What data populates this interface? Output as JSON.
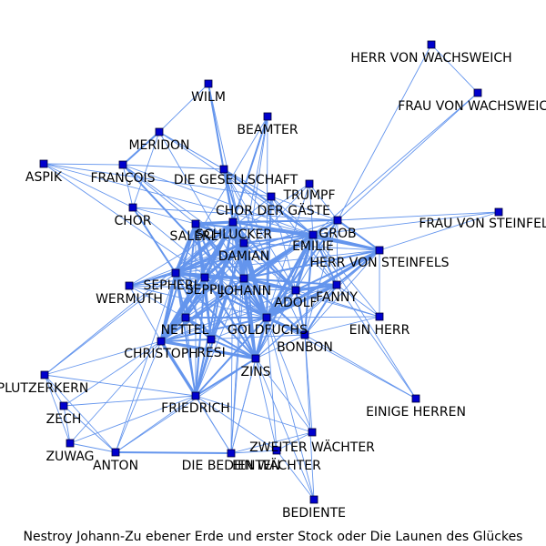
{
  "caption": "Nestroy Johann-Zu ebener Erde und erster Stock oder Die Launen des Glückes",
  "colors": {
    "edge": "#6495ED",
    "node": "#0000CD",
    "text": "#000000",
    "background": "#ffffff"
  },
  "nodes": [
    {
      "id": "herr_von_wachsweich",
      "label": "HERR VON WACHSWEICH"
    },
    {
      "id": "frau_von_wachsweich",
      "label": "FRAU VON WACHSWEICH"
    },
    {
      "id": "wilm",
      "label": "WILM"
    },
    {
      "id": "beamter",
      "label": "BEAMTER"
    },
    {
      "id": "meridon",
      "label": "MERIDON"
    },
    {
      "id": "aspik",
      "label": "ASPIK"
    },
    {
      "id": "francois",
      "label": "FRANÇOIS"
    },
    {
      "id": "die_gesellschaft",
      "label": "DIE GESELLSCHAFT"
    },
    {
      "id": "trumpf",
      "label": "TRUMPF"
    },
    {
      "id": "chor",
      "label": "CHOR"
    },
    {
      "id": "chor_der_gaeste",
      "label": "CHOR DER GÄSTE"
    },
    {
      "id": "frau_von_steinfels",
      "label": "FRAU VON STEINFELS"
    },
    {
      "id": "salerl",
      "label": "SALERL"
    },
    {
      "id": "schlucker",
      "label": "SCHLUCKER"
    },
    {
      "id": "grob",
      "label": "GROB"
    },
    {
      "id": "emilie",
      "label": "EMILIE"
    },
    {
      "id": "damian",
      "label": "DAMIAN"
    },
    {
      "id": "herr_von_steinfels",
      "label": "HERR VON STEINFELS"
    },
    {
      "id": "sepherl",
      "label": "SEPHERL"
    },
    {
      "id": "seppl",
      "label": "SEPPL"
    },
    {
      "id": "johann",
      "label": "JOHANN"
    },
    {
      "id": "wermuth",
      "label": "WERMUTH"
    },
    {
      "id": "adolf",
      "label": "ADOLF"
    },
    {
      "id": "fanny",
      "label": "FANNY"
    },
    {
      "id": "nettel",
      "label": "NETTEL"
    },
    {
      "id": "goldfuchs",
      "label": "GOLDFUCHS"
    },
    {
      "id": "ein_herr",
      "label": "EIN HERR"
    },
    {
      "id": "bonbon",
      "label": "BONBON"
    },
    {
      "id": "christoph",
      "label": "CHRISTOPH"
    },
    {
      "id": "resi",
      "label": "RESI"
    },
    {
      "id": "zins",
      "label": "ZINS"
    },
    {
      "id": "plutzerkern",
      "label": "PLUTZERKERN"
    },
    {
      "id": "friedrich",
      "label": "FRIEDRICH"
    },
    {
      "id": "einige_herren",
      "label": "EINIGE HERREN"
    },
    {
      "id": "zech",
      "label": "ZECH"
    },
    {
      "id": "zweiter_waechter",
      "label": "ZWEITER WÄCHTER"
    },
    {
      "id": "zuwag",
      "label": "ZUWAG"
    },
    {
      "id": "anton",
      "label": "ANTON"
    },
    {
      "id": "die_bedienten",
      "label": "DIE BEDIENTEN"
    },
    {
      "id": "ein_waechter",
      "label": "EIN WÄCHTER"
    },
    {
      "id": "bediente",
      "label": "BEDIENTE"
    }
  ],
  "edges": [
    [
      "herr_von_wachsweich",
      "frau_von_wachsweich",
      1
    ],
    [
      "herr_von_wachsweich",
      "grob",
      1
    ],
    [
      "frau_von_wachsweich",
      "grob",
      1
    ],
    [
      "frau_von_wachsweich",
      "emilie",
      1
    ],
    [
      "wilm",
      "schlucker",
      2
    ],
    [
      "wilm",
      "damian",
      1
    ],
    [
      "wilm",
      "meridon",
      1
    ],
    [
      "beamter",
      "schlucker",
      2
    ],
    [
      "beamter",
      "damian",
      1
    ],
    [
      "beamter",
      "goldfuchs",
      1
    ],
    [
      "beamter",
      "johann",
      1
    ],
    [
      "beamter",
      "sepherl",
      1
    ],
    [
      "meridon",
      "francois",
      2
    ],
    [
      "meridon",
      "chor",
      1
    ],
    [
      "meridon",
      "goldfuchs",
      1
    ],
    [
      "meridon",
      "die_gesellschaft",
      1
    ],
    [
      "meridon",
      "chor_der_gaeste",
      1
    ],
    [
      "meridon",
      "emilie",
      1
    ],
    [
      "aspik",
      "francois",
      1
    ],
    [
      "aspik",
      "chor",
      1
    ],
    [
      "aspik",
      "goldfuchs",
      1
    ],
    [
      "aspik",
      "emilie",
      1
    ],
    [
      "aspik",
      "chor_der_gaeste",
      1
    ],
    [
      "francois",
      "chor",
      1
    ],
    [
      "francois",
      "goldfuchs",
      2
    ],
    [
      "francois",
      "emilie",
      1
    ],
    [
      "francois",
      "die_gesellschaft",
      1
    ],
    [
      "francois",
      "salerl",
      1
    ],
    [
      "francois",
      "adolf",
      1
    ],
    [
      "die_gesellschaft",
      "goldfuchs",
      2
    ],
    [
      "die_gesellschaft",
      "emilie",
      2
    ],
    [
      "die_gesellschaft",
      "johann",
      2
    ],
    [
      "die_gesellschaft",
      "adolf",
      1
    ],
    [
      "die_gesellschaft",
      "chor_der_gaeste",
      1
    ],
    [
      "die_gesellschaft",
      "fanny",
      1
    ],
    [
      "die_gesellschaft",
      "bonbon",
      1
    ],
    [
      "trumpf",
      "emilie",
      1
    ],
    [
      "trumpf",
      "goldfuchs",
      1
    ],
    [
      "trumpf",
      "sepherl",
      1
    ],
    [
      "trumpf",
      "christoph",
      1
    ],
    [
      "trumpf",
      "grob",
      1
    ],
    [
      "chor",
      "salerl",
      1
    ],
    [
      "chor",
      "goldfuchs",
      1
    ],
    [
      "chor",
      "sepherl",
      2
    ],
    [
      "chor",
      "grob",
      1
    ],
    [
      "chor_der_gaeste",
      "goldfuchs",
      2
    ],
    [
      "chor_der_gaeste",
      "emilie",
      1
    ],
    [
      "chor_der_gaeste",
      "grob",
      1
    ],
    [
      "chor_der_gaeste",
      "adolf",
      1
    ],
    [
      "chor_der_gaeste",
      "fanny",
      1
    ],
    [
      "chor_der_gaeste",
      "sepherl",
      1
    ],
    [
      "frau_von_steinfels",
      "herr_von_steinfels",
      1
    ],
    [
      "frau_von_steinfels",
      "grob",
      1
    ],
    [
      "frau_von_steinfels",
      "emilie",
      1
    ],
    [
      "salerl",
      "schlucker",
      3
    ],
    [
      "salerl",
      "damian",
      3
    ],
    [
      "salerl",
      "sepherl",
      3
    ],
    [
      "salerl",
      "seppl",
      3
    ],
    [
      "salerl",
      "johann",
      2
    ],
    [
      "salerl",
      "christoph",
      2
    ],
    [
      "salerl",
      "nettel",
      2
    ],
    [
      "salerl",
      "goldfuchs",
      2
    ],
    [
      "salerl",
      "resi",
      2
    ],
    [
      "salerl",
      "zins",
      2
    ],
    [
      "salerl",
      "emilie",
      2
    ],
    [
      "salerl",
      "grob",
      1
    ],
    [
      "salerl",
      "friedrich",
      1
    ],
    [
      "schlucker",
      "damian",
      3
    ],
    [
      "schlucker",
      "sepherl",
      3
    ],
    [
      "schlucker",
      "seppl",
      3
    ],
    [
      "schlucker",
      "johann",
      3
    ],
    [
      "schlucker",
      "christoph",
      3
    ],
    [
      "schlucker",
      "goldfuchs",
      3
    ],
    [
      "schlucker",
      "zins",
      3
    ],
    [
      "schlucker",
      "nettel",
      2
    ],
    [
      "schlucker",
      "resi",
      2
    ],
    [
      "schlucker",
      "emilie",
      2
    ],
    [
      "schlucker",
      "adolf",
      2
    ],
    [
      "schlucker",
      "grob",
      2
    ],
    [
      "schlucker",
      "herr_von_steinfels",
      2
    ],
    [
      "schlucker",
      "friedrich",
      2
    ],
    [
      "schlucker",
      "wermuth",
      1
    ],
    [
      "schlucker",
      "plutzerkern",
      1
    ],
    [
      "schlucker",
      "die_bedienten",
      1
    ],
    [
      "grob",
      "emilie",
      2
    ],
    [
      "grob",
      "herr_von_steinfels",
      2
    ],
    [
      "grob",
      "goldfuchs",
      2
    ],
    [
      "grob",
      "johann",
      2
    ],
    [
      "grob",
      "adolf",
      1
    ],
    [
      "grob",
      "fanny",
      1
    ],
    [
      "grob",
      "christoph",
      1
    ],
    [
      "grob",
      "sepherl",
      1
    ],
    [
      "grob",
      "bonbon",
      1
    ],
    [
      "emilie",
      "goldfuchs",
      3
    ],
    [
      "emilie",
      "herr_von_steinfels",
      3
    ],
    [
      "emilie",
      "adolf",
      3
    ],
    [
      "emilie",
      "johann",
      3
    ],
    [
      "emilie",
      "fanny",
      2
    ],
    [
      "emilie",
      "damian",
      2
    ],
    [
      "emilie",
      "bonbon",
      2
    ],
    [
      "emilie",
      "zins",
      2
    ],
    [
      "emilie",
      "christoph",
      2
    ],
    [
      "emilie",
      "sepherl",
      2
    ],
    [
      "emilie",
      "ein_herr",
      1
    ],
    [
      "emilie",
      "einige_herren",
      1
    ],
    [
      "damian",
      "sepherl",
      3
    ],
    [
      "damian",
      "seppl",
      3
    ],
    [
      "damian",
      "johann",
      3
    ],
    [
      "damian",
      "christoph",
      3
    ],
    [
      "damian",
      "goldfuchs",
      3
    ],
    [
      "damian",
      "zins",
      2
    ],
    [
      "damian",
      "nettel",
      2
    ],
    [
      "damian",
      "resi",
      2
    ],
    [
      "damian",
      "adolf",
      2
    ],
    [
      "damian",
      "friedrich",
      2
    ],
    [
      "damian",
      "wermuth",
      1
    ],
    [
      "damian",
      "herr_von_steinfels",
      1
    ],
    [
      "damian",
      "die_bedienten",
      1
    ],
    [
      "herr_von_steinfels",
      "goldfuchs",
      3
    ],
    [
      "herr_von_steinfels",
      "adolf",
      2
    ],
    [
      "herr_von_steinfels",
      "fanny",
      2
    ],
    [
      "herr_von_steinfels",
      "johann",
      2
    ],
    [
      "herr_von_steinfels",
      "bonbon",
      1
    ],
    [
      "herr_von_steinfels",
      "ein_herr",
      1
    ],
    [
      "herr_von_steinfels",
      "zins",
      1
    ],
    [
      "herr_von_steinfels",
      "sepherl",
      1
    ],
    [
      "sepherl",
      "seppl",
      3
    ],
    [
      "sepherl",
      "johann",
      3
    ],
    [
      "sepherl",
      "christoph",
      3
    ],
    [
      "sepherl",
      "goldfuchs",
      2
    ],
    [
      "sepherl",
      "zins",
      2
    ],
    [
      "sepherl",
      "nettel",
      2
    ],
    [
      "sepherl",
      "resi",
      2
    ],
    [
      "sepherl",
      "wermuth",
      2
    ],
    [
      "sepherl",
      "friedrich",
      2
    ],
    [
      "sepherl",
      "adolf",
      1
    ],
    [
      "sepherl",
      "plutzerkern",
      1
    ],
    [
      "sepherl",
      "anton",
      1
    ],
    [
      "seppl",
      "johann",
      2
    ],
    [
      "seppl",
      "christoph",
      3
    ],
    [
      "seppl",
      "nettel",
      2
    ],
    [
      "seppl",
      "resi",
      2
    ],
    [
      "seppl",
      "zins",
      2
    ],
    [
      "seppl",
      "goldfuchs",
      2
    ],
    [
      "seppl",
      "friedrich",
      2
    ],
    [
      "seppl",
      "wermuth",
      1
    ],
    [
      "johann",
      "goldfuchs",
      3
    ],
    [
      "johann",
      "adolf",
      3
    ],
    [
      "johann",
      "fanny",
      2
    ],
    [
      "johann",
      "christoph",
      2
    ],
    [
      "johann",
      "zins",
      2
    ],
    [
      "johann",
      "bonbon",
      2
    ],
    [
      "johann",
      "nettel",
      1
    ],
    [
      "johann",
      "resi",
      1
    ],
    [
      "johann",
      "friedrich",
      1
    ],
    [
      "johann",
      "ein_herr",
      1
    ],
    [
      "johann",
      "die_bedienten",
      1
    ],
    [
      "wermuth",
      "christoph",
      1
    ],
    [
      "wermuth",
      "goldfuchs",
      1
    ],
    [
      "wermuth",
      "zins",
      1
    ],
    [
      "wermuth",
      "adolf",
      1
    ],
    [
      "wermuth",
      "grob",
      1
    ],
    [
      "adolf",
      "goldfuchs",
      3
    ],
    [
      "adolf",
      "fanny",
      3
    ],
    [
      "adolf",
      "bonbon",
      2
    ],
    [
      "adolf",
      "zins",
      1
    ],
    [
      "adolf",
      "ein_herr",
      1
    ],
    [
      "adolf",
      "christoph",
      1
    ],
    [
      "fanny",
      "goldfuchs",
      3
    ],
    [
      "fanny",
      "bonbon",
      2
    ],
    [
      "fanny",
      "ein_herr",
      1
    ],
    [
      "fanny",
      "zins",
      1
    ],
    [
      "fanny",
      "christoph",
      1
    ],
    [
      "fanny",
      "einige_herren",
      1
    ],
    [
      "nettel",
      "christoph",
      2
    ],
    [
      "nettel",
      "resi",
      2
    ],
    [
      "nettel",
      "zins",
      2
    ],
    [
      "nettel",
      "goldfuchs",
      2
    ],
    [
      "nettel",
      "friedrich",
      1
    ],
    [
      "goldfuchs",
      "bonbon",
      3
    ],
    [
      "goldfuchs",
      "zins",
      3
    ],
    [
      "goldfuchs",
      "christoph",
      2
    ],
    [
      "goldfuchs",
      "resi",
      1
    ],
    [
      "goldfuchs",
      "friedrich",
      2
    ],
    [
      "goldfuchs",
      "ein_herr",
      1
    ],
    [
      "goldfuchs",
      "einige_herren",
      1
    ],
    [
      "goldfuchs",
      "die_bedienten",
      1
    ],
    [
      "goldfuchs",
      "zweiter_waechter",
      1
    ],
    [
      "goldfuchs",
      "ein_waechter",
      1
    ],
    [
      "goldfuchs",
      "bediente",
      1
    ],
    [
      "bonbon",
      "zins",
      1
    ],
    [
      "bonbon",
      "ein_herr",
      1
    ],
    [
      "bonbon",
      "christoph",
      1
    ],
    [
      "bonbon",
      "einige_herren",
      1
    ],
    [
      "bonbon",
      "bediente",
      1
    ],
    [
      "bonbon",
      "zweiter_waechter",
      1
    ],
    [
      "christoph",
      "resi",
      2
    ],
    [
      "christoph",
      "zins",
      3
    ],
    [
      "christoph",
      "friedrich",
      3
    ],
    [
      "christoph",
      "plutzerkern",
      1
    ],
    [
      "christoph",
      "zech",
      1
    ],
    [
      "christoph",
      "zuwag",
      1
    ],
    [
      "christoph",
      "anton",
      1
    ],
    [
      "christoph",
      "die_bedienten",
      1
    ],
    [
      "resi",
      "zins",
      2
    ],
    [
      "resi",
      "friedrich",
      1
    ],
    [
      "zins",
      "friedrich",
      2
    ],
    [
      "zins",
      "zweiter_waechter",
      1
    ],
    [
      "zins",
      "ein_waechter",
      1
    ],
    [
      "zins",
      "die_bedienten",
      1
    ],
    [
      "zins",
      "bediente",
      1
    ],
    [
      "zins",
      "anton",
      1
    ],
    [
      "plutzerkern",
      "zech",
      1
    ],
    [
      "plutzerkern",
      "zuwag",
      1
    ],
    [
      "plutzerkern",
      "friedrich",
      1
    ],
    [
      "plutzerkern",
      "anton",
      1
    ],
    [
      "friedrich",
      "zech",
      1
    ],
    [
      "friedrich",
      "zuwag",
      1
    ],
    [
      "friedrich",
      "anton",
      1
    ],
    [
      "friedrich",
      "die_bedienten",
      1
    ],
    [
      "friedrich",
      "ein_waechter",
      1
    ],
    [
      "friedrich",
      "zweiter_waechter",
      1
    ],
    [
      "zech",
      "zuwag",
      1
    ],
    [
      "zech",
      "anton",
      1
    ],
    [
      "zuwag",
      "anton",
      1
    ],
    [
      "anton",
      "die_bedienten",
      2
    ],
    [
      "die_bedienten",
      "ein_waechter",
      1
    ],
    [
      "die_bedienten",
      "zweiter_waechter",
      1
    ],
    [
      "zweiter_waechter",
      "ein_waechter",
      1
    ],
    [
      "ein_waechter",
      "bediente",
      1
    ]
  ]
}
